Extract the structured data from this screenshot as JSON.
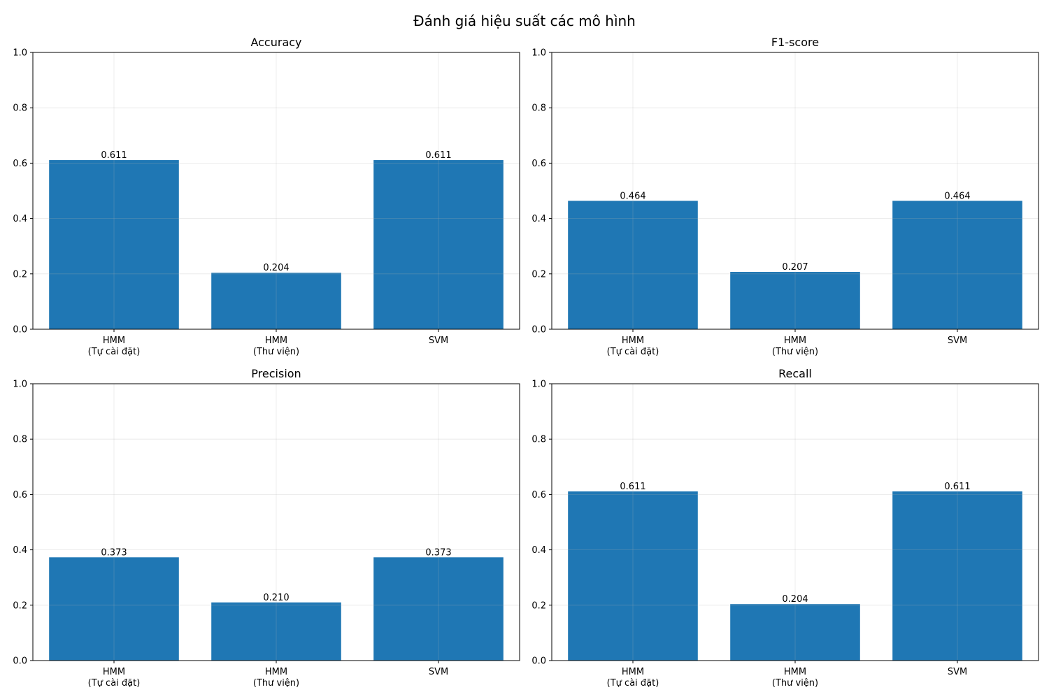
{
  "figure": {
    "title": "Đánh giá hiệu suất các mô hình"
  },
  "colors": {
    "bar": "#1f77b4",
    "grid": "#b0b0b0",
    "axis": "#000000"
  },
  "chart_data": [
    {
      "type": "bar",
      "title": "Accuracy",
      "xlabel": "",
      "ylabel": "",
      "categories": [
        "HMM\n(Tự cài đặt)",
        "HMM\n(Thư viện)",
        "SVM"
      ],
      "values": [
        0.611,
        0.204,
        0.611
      ],
      "value_labels": [
        "0.611",
        "0.204",
        "0.611"
      ],
      "ylim": [
        0,
        1.0
      ],
      "yticks": [
        0.0,
        0.2,
        0.4,
        0.6,
        0.8,
        1.0
      ],
      "ytick_labels": [
        "0.0",
        "0.2",
        "0.4",
        "0.6",
        "0.8",
        "1.0"
      ],
      "grid": true,
      "legend": "none"
    },
    {
      "type": "bar",
      "title": "F1-score",
      "xlabel": "",
      "ylabel": "",
      "categories": [
        "HMM\n(Tự cài đặt)",
        "HMM\n(Thư viện)",
        "SVM"
      ],
      "values": [
        0.464,
        0.207,
        0.464
      ],
      "value_labels": [
        "0.464",
        "0.207",
        "0.464"
      ],
      "ylim": [
        0,
        1.0
      ],
      "yticks": [
        0.0,
        0.2,
        0.4,
        0.6,
        0.8,
        1.0
      ],
      "ytick_labels": [
        "0.0",
        "0.2",
        "0.4",
        "0.6",
        "0.8",
        "1.0"
      ],
      "grid": true,
      "legend": "none"
    },
    {
      "type": "bar",
      "title": "Precision",
      "xlabel": "",
      "ylabel": "",
      "categories": [
        "HMM\n(Tự cài đặt)",
        "HMM\n(Thư viện)",
        "SVM"
      ],
      "values": [
        0.373,
        0.21,
        0.373
      ],
      "value_labels": [
        "0.373",
        "0.210",
        "0.373"
      ],
      "ylim": [
        0,
        1.0
      ],
      "yticks": [
        0.0,
        0.2,
        0.4,
        0.6,
        0.8,
        1.0
      ],
      "ytick_labels": [
        "0.0",
        "0.2",
        "0.4",
        "0.6",
        "0.8",
        "1.0"
      ],
      "grid": true,
      "legend": "none"
    },
    {
      "type": "bar",
      "title": "Recall",
      "xlabel": "",
      "ylabel": "",
      "categories": [
        "HMM\n(Tự cài đặt)",
        "HMM\n(Thư viện)",
        "SVM"
      ],
      "values": [
        0.611,
        0.204,
        0.611
      ],
      "value_labels": [
        "0.611",
        "0.204",
        "0.611"
      ],
      "ylim": [
        0,
        1.0
      ],
      "yticks": [
        0.0,
        0.2,
        0.4,
        0.6,
        0.8,
        1.0
      ],
      "ytick_labels": [
        "0.0",
        "0.2",
        "0.4",
        "0.6",
        "0.8",
        "1.0"
      ],
      "grid": true,
      "legend": "none"
    }
  ]
}
